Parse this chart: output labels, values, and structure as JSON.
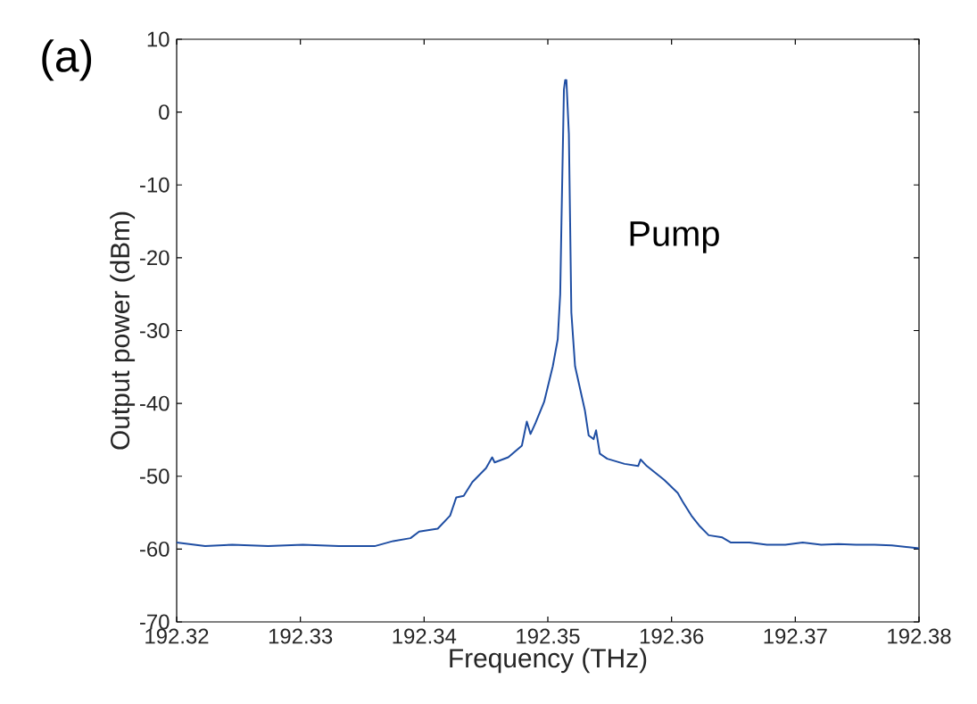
{
  "chart_data": {
    "type": "line",
    "xlabel": "Frequency (THz)",
    "ylabel": "Output power (dBm)",
    "annotations": [
      "(a)",
      "Pump"
    ],
    "xlim": [
      192.32,
      192.38
    ],
    "xticks": [
      192.32,
      192.33,
      192.34,
      192.35,
      192.36,
      192.37,
      192.38
    ],
    "ylim": [
      -70,
      10
    ],
    "yticks": [
      -70,
      -60,
      -50,
      -40,
      -30,
      -20,
      -10,
      0,
      10
    ],
    "grid": false,
    "marker": "none",
    "line_style": "solid",
    "x": [
      192.32,
      192.3223,
      192.3245,
      192.3274,
      192.3302,
      192.3331,
      192.336,
      192.3375,
      192.3389,
      192.3396,
      192.3411,
      192.3421,
      192.3426,
      192.3432,
      192.3439,
      192.345,
      192.3455,
      192.3457,
      192.3468,
      192.3479,
      192.3483,
      192.3486,
      192.349,
      192.3497,
      192.3504,
      192.3508,
      192.351,
      192.3511,
      192.3513,
      192.3514,
      192.3515,
      192.3517,
      192.3518,
      192.3519,
      192.3522,
      192.353,
      192.3533,
      192.3537,
      192.3539,
      192.3542,
      192.3548,
      192.3562,
      192.3573,
      192.3575,
      192.358,
      192.3594,
      192.3605,
      192.3609,
      192.3616,
      192.3623,
      192.363,
      192.3641,
      192.3648,
      192.3663,
      192.3677,
      192.3692,
      192.3706,
      192.3721,
      192.3735,
      192.3749,
      192.3764,
      192.3778,
      192.38
    ],
    "series": [
      {
        "color": "#1f4ea3",
        "values": [
          -59.1,
          -59.6,
          -59.4,
          -59.6,
          -59.4,
          -59.6,
          -59.6,
          -58.9,
          -58.5,
          -57.6,
          -57.2,
          -55.4,
          -52.9,
          -52.7,
          -50.8,
          -48.9,
          -47.4,
          -48.1,
          -47.4,
          -45.8,
          -42.5,
          -44.2,
          -42.7,
          -39.8,
          -34.9,
          -31.2,
          -25.0,
          -15.2,
          3.1,
          4.4,
          4.4,
          -3.0,
          -15.2,
          -27.5,
          -34.9,
          -41.0,
          -44.4,
          -44.9,
          -43.7,
          -46.9,
          -47.6,
          -48.3,
          -48.6,
          -47.7,
          -48.6,
          -50.5,
          -52.3,
          -53.5,
          -55.4,
          -56.9,
          -58.1,
          -58.4,
          -59.1,
          -59.1,
          -59.4,
          -59.4,
          -59.1,
          -59.4,
          -59.3,
          -59.4,
          -59.4,
          -59.5,
          -59.9
        ]
      }
    ]
  }
}
